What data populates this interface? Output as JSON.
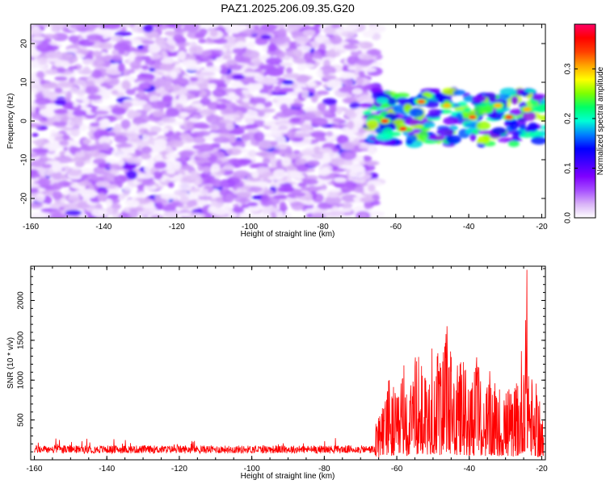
{
  "page": {
    "title": "PAZ1.2025.206.09.35.G20"
  },
  "colors": {
    "colormap": [
      "#ffffff",
      "#d9b3f7",
      "#a64dff",
      "#7f00ff",
      "#3f00ff",
      "#0000ff",
      "#007fff",
      "#00ffd5",
      "#00ff66",
      "#7fff00",
      "#ffff00",
      "#ffa500",
      "#ff4000",
      "#ff0000",
      "#ff0066"
    ],
    "snr_line": "#ff0000",
    "frame": "#000000"
  },
  "chart_data": [
    {
      "type": "heatmap",
      "name": "spectrogram",
      "title": "PAZ1.2025.206.09.35.G20",
      "xlabel": "Height of straight line (km)",
      "ylabel": "Frequency (Hz)",
      "xlim": [
        -160,
        -19
      ],
      "ylim": [
        -25,
        25
      ],
      "x_ticks": [
        -160,
        -140,
        -120,
        -100,
        -80,
        -60,
        -40,
        -20
      ],
      "y_ticks": [
        -20,
        -10,
        0,
        10,
        20
      ],
      "colorbar": {
        "label": "Normalized spectral amplitude",
        "range": [
          0.0,
          0.39
        ],
        "ticks": [
          0.0,
          0.1,
          0.2,
          0.3
        ],
        "tick_labels": [
          "0.0",
          "0.1",
          "0.2",
          "0.3"
        ]
      },
      "regions": [
        {
          "x_range": [
            -160,
            -65
          ],
          "freq_range": [
            -25,
            25
          ],
          "amplitude": "low",
          "typical_value": 0.04,
          "description": "broadband low-amplitude noise"
        },
        {
          "x_range": [
            -68,
            -19
          ],
          "freq_range": [
            -6,
            8
          ],
          "amplitude": "high",
          "typical_value": 0.2,
          "description": "signal band near 0 Hz"
        }
      ],
      "peaks": [
        {
          "x": -63,
          "freq": 0,
          "value": 0.36
        },
        {
          "x": -58,
          "freq": -2,
          "value": 0.36
        },
        {
          "x": -53,
          "freq": 5,
          "value": 0.33
        },
        {
          "x": -46,
          "freq": 4,
          "value": 0.3
        },
        {
          "x": -39,
          "freq": 1,
          "value": 0.34
        },
        {
          "x": -32,
          "freq": 4,
          "value": 0.3
        },
        {
          "x": -29,
          "freq": 1,
          "value": 0.37
        },
        {
          "x": -24,
          "freq": 3,
          "value": 0.3
        }
      ],
      "grid": false
    },
    {
      "type": "line",
      "name": "snr",
      "xlabel": "Height of straight line (km)",
      "ylabel": "SNR (10 * v/v)",
      "xlim": [
        -161,
        -19
      ],
      "ylim": [
        0,
        2430
      ],
      "x_ticks": [
        -160,
        -140,
        -120,
        -100,
        -80,
        -60,
        -40,
        -20
      ],
      "y_ticks": [
        500,
        1000,
        1500,
        2000
      ],
      "series": [
        {
          "x": [
            -160,
            -155,
            -150,
            -145,
            -140,
            -135,
            -130,
            -125,
            -120,
            -115,
            -110,
            -105,
            -100,
            -95,
            -90,
            -85,
            -80,
            -75,
            -70,
            -67,
            -65,
            -63,
            -62,
            -60,
            -58,
            -56,
            -54,
            -52,
            -50,
            -48,
            -46,
            -44,
            -42,
            -40,
            -38,
            -36,
            -34,
            -32,
            -30,
            -28,
            -26,
            -25,
            -24,
            -23,
            -22,
            -21,
            -20,
            -19.5
          ],
          "values": [
            150,
            140,
            150,
            145,
            140,
            150,
            145,
            140,
            150,
            145,
            150,
            140,
            155,
            150,
            150,
            145,
            150,
            150,
            200,
            250,
            550,
            800,
            1100,
            750,
            1200,
            900,
            1500,
            1000,
            1550,
            1150,
            1700,
            1050,
            1300,
            1000,
            1250,
            900,
            1100,
            900,
            1000,
            800,
            1150,
            1900,
            2400,
            1100,
            1000,
            800,
            700,
            350
          ],
          "base_level": 130,
          "noise_amplitude_before_-65": 100
        }
      ],
      "grid": false
    }
  ]
}
